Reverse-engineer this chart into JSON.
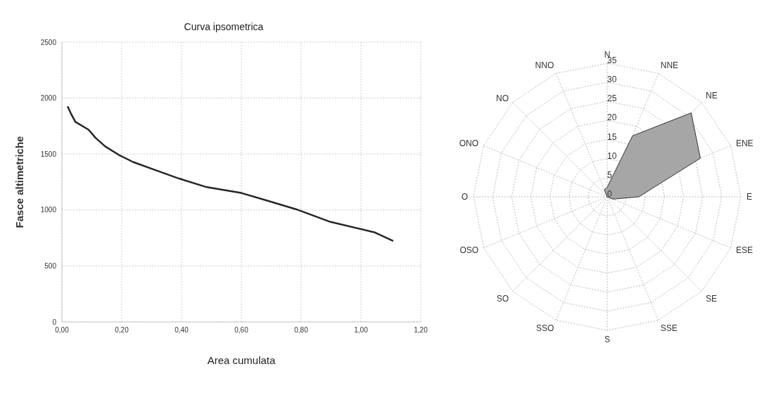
{
  "chart_data": [
    {
      "type": "line",
      "title": "Curva ipsometrica",
      "xlabel": "Area cumulata",
      "ylabel": "Fasce altimetriche",
      "series": [
        {
          "color": "#262626",
          "x": [
            0.019,
            0.032,
            0.045,
            0.089,
            0.113,
            0.145,
            0.19,
            0.238,
            0.315,
            0.387,
            0.485,
            0.6,
            0.689,
            0.783,
            0.894,
            1.047,
            1.108
          ],
          "values": [
            1927,
            1852,
            1788,
            1718,
            1643,
            1568,
            1493,
            1429,
            1354,
            1285,
            1204,
            1152,
            1082,
            1007,
            897,
            799,
            723
          ]
        }
      ],
      "xlim": [
        0,
        1.2
      ],
      "xticks": [
        {
          "value": 0,
          "label": "0,00"
        },
        {
          "value": 0.2,
          "label": "0,20"
        },
        {
          "value": 0.4,
          "label": "0,40"
        },
        {
          "value": 0.6,
          "label": "0,60"
        },
        {
          "value": 0.8,
          "label": "0,80"
        },
        {
          "value": 1,
          "label": "1,00"
        },
        {
          "value": 1.2,
          "label": "1,20"
        }
      ],
      "ylim": [
        0,
        2500
      ],
      "yticks": [
        0,
        500,
        1000,
        1500,
        2000,
        2500
      ],
      "grid": true,
      "marker": "none",
      "line_style": "solid"
    },
    {
      "type": "radar",
      "categories": [
        "N",
        "NNE",
        "NE",
        "ENE",
        "E",
        "ESE",
        "SE",
        "SSE",
        "S",
        "SSO",
        "SO",
        "OSO",
        "O",
        "ONO",
        "NO",
        "NNO"
      ],
      "series": [
        {
          "color": "#a6a6a6",
          "values": [
            2.5,
            17.3,
            31.1,
            26.4,
            8.3,
            1.6,
            0,
            0,
            0,
            0,
            0,
            0,
            0,
            0,
            0,
            2
          ]
        }
      ],
      "ylim": [
        0,
        35
      ],
      "yticks": [
        0,
        5,
        10,
        15,
        20,
        25,
        30,
        35
      ],
      "grid": true
    }
  ]
}
